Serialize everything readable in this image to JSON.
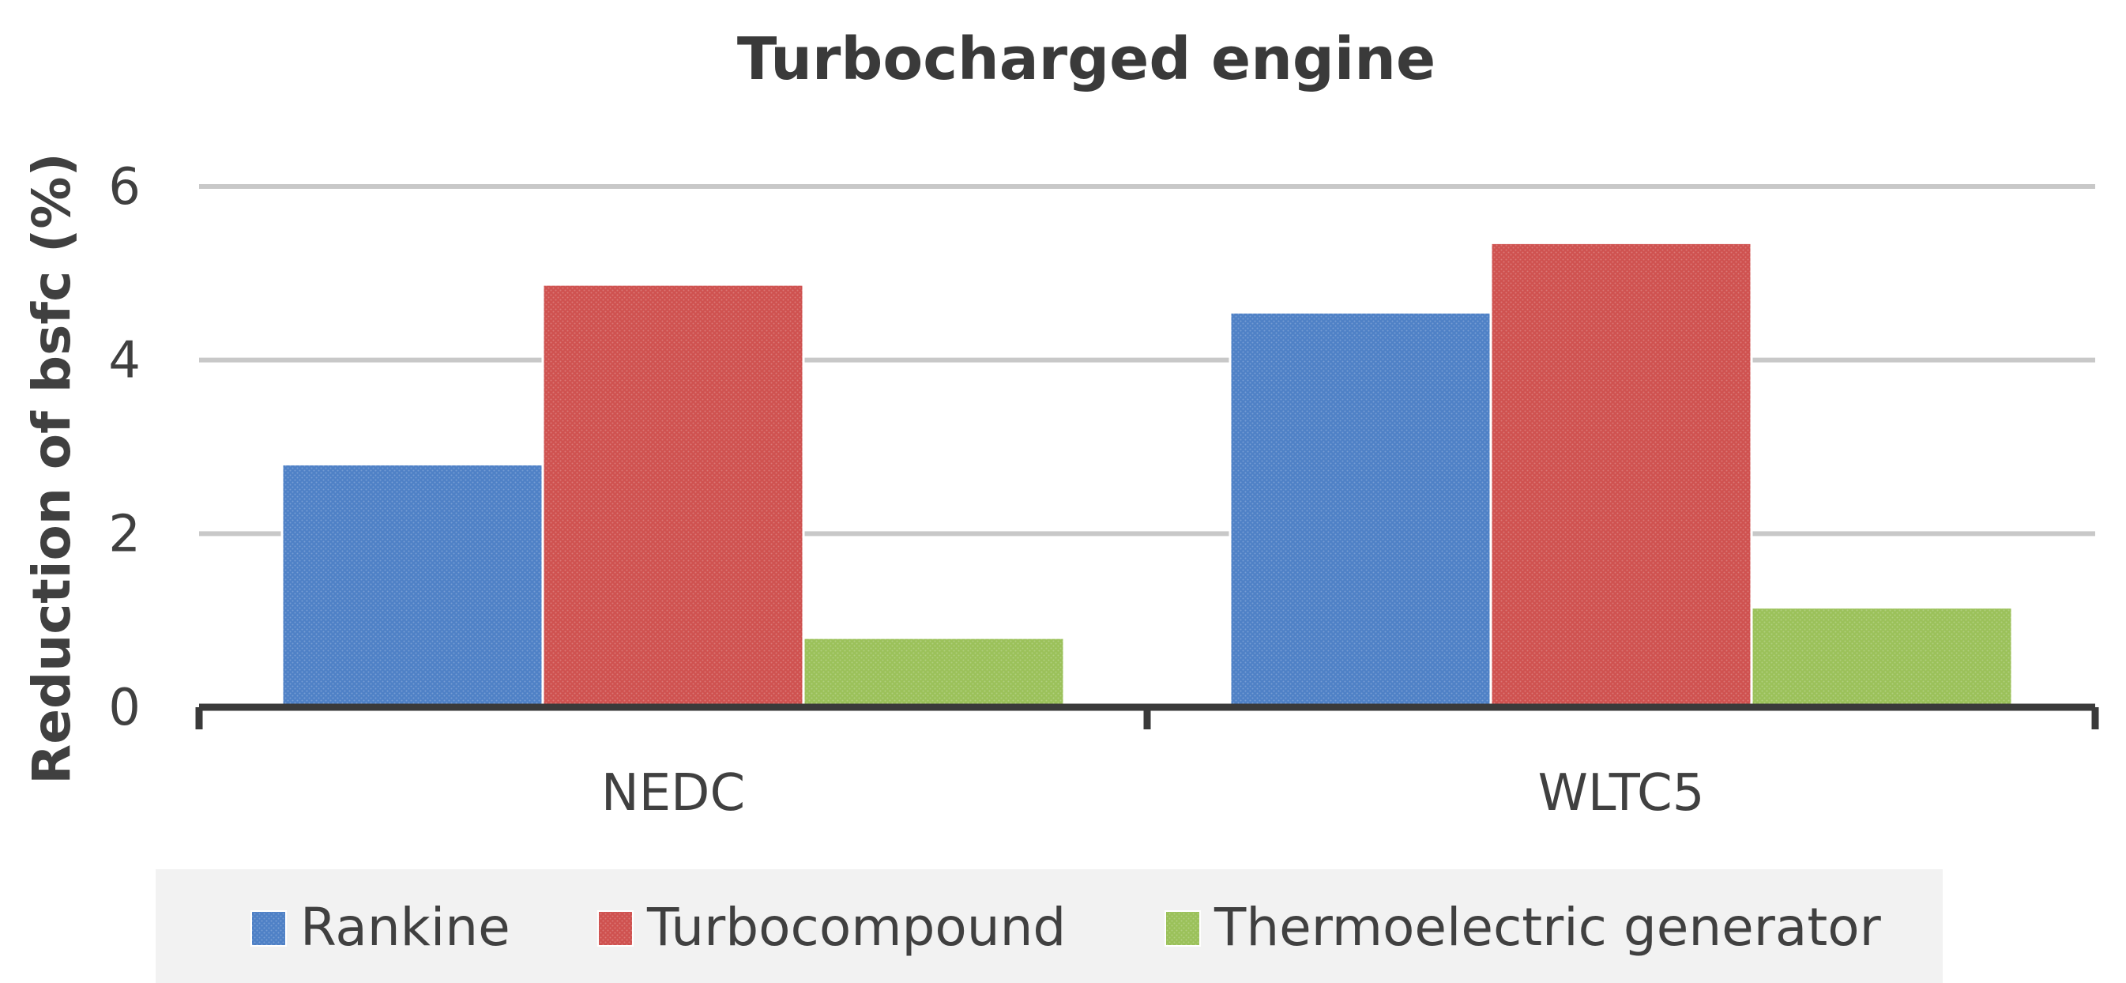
{
  "chart_data": {
    "type": "bar",
    "title": "Turbocharged engine",
    "xlabel": "",
    "ylabel": "Reduction of bsfc (%)",
    "categories": [
      "NEDC",
      "WLTC5"
    ],
    "series": [
      {
        "name": "Rankine",
        "color": "#4f81c6",
        "values": [
          2.8,
          4.55
        ]
      },
      {
        "name": "Turbocompound",
        "color": "#cf5250",
        "values": [
          4.87,
          5.35
        ]
      },
      {
        "name": "Thermoelectric generator",
        "color": "#9bc15a",
        "values": [
          0.8,
          1.15
        ]
      }
    ],
    "ylim": [
      0,
      6
    ],
    "yticks": [
      0,
      2,
      4,
      6
    ],
    "grid": true,
    "legend": "bottom"
  }
}
